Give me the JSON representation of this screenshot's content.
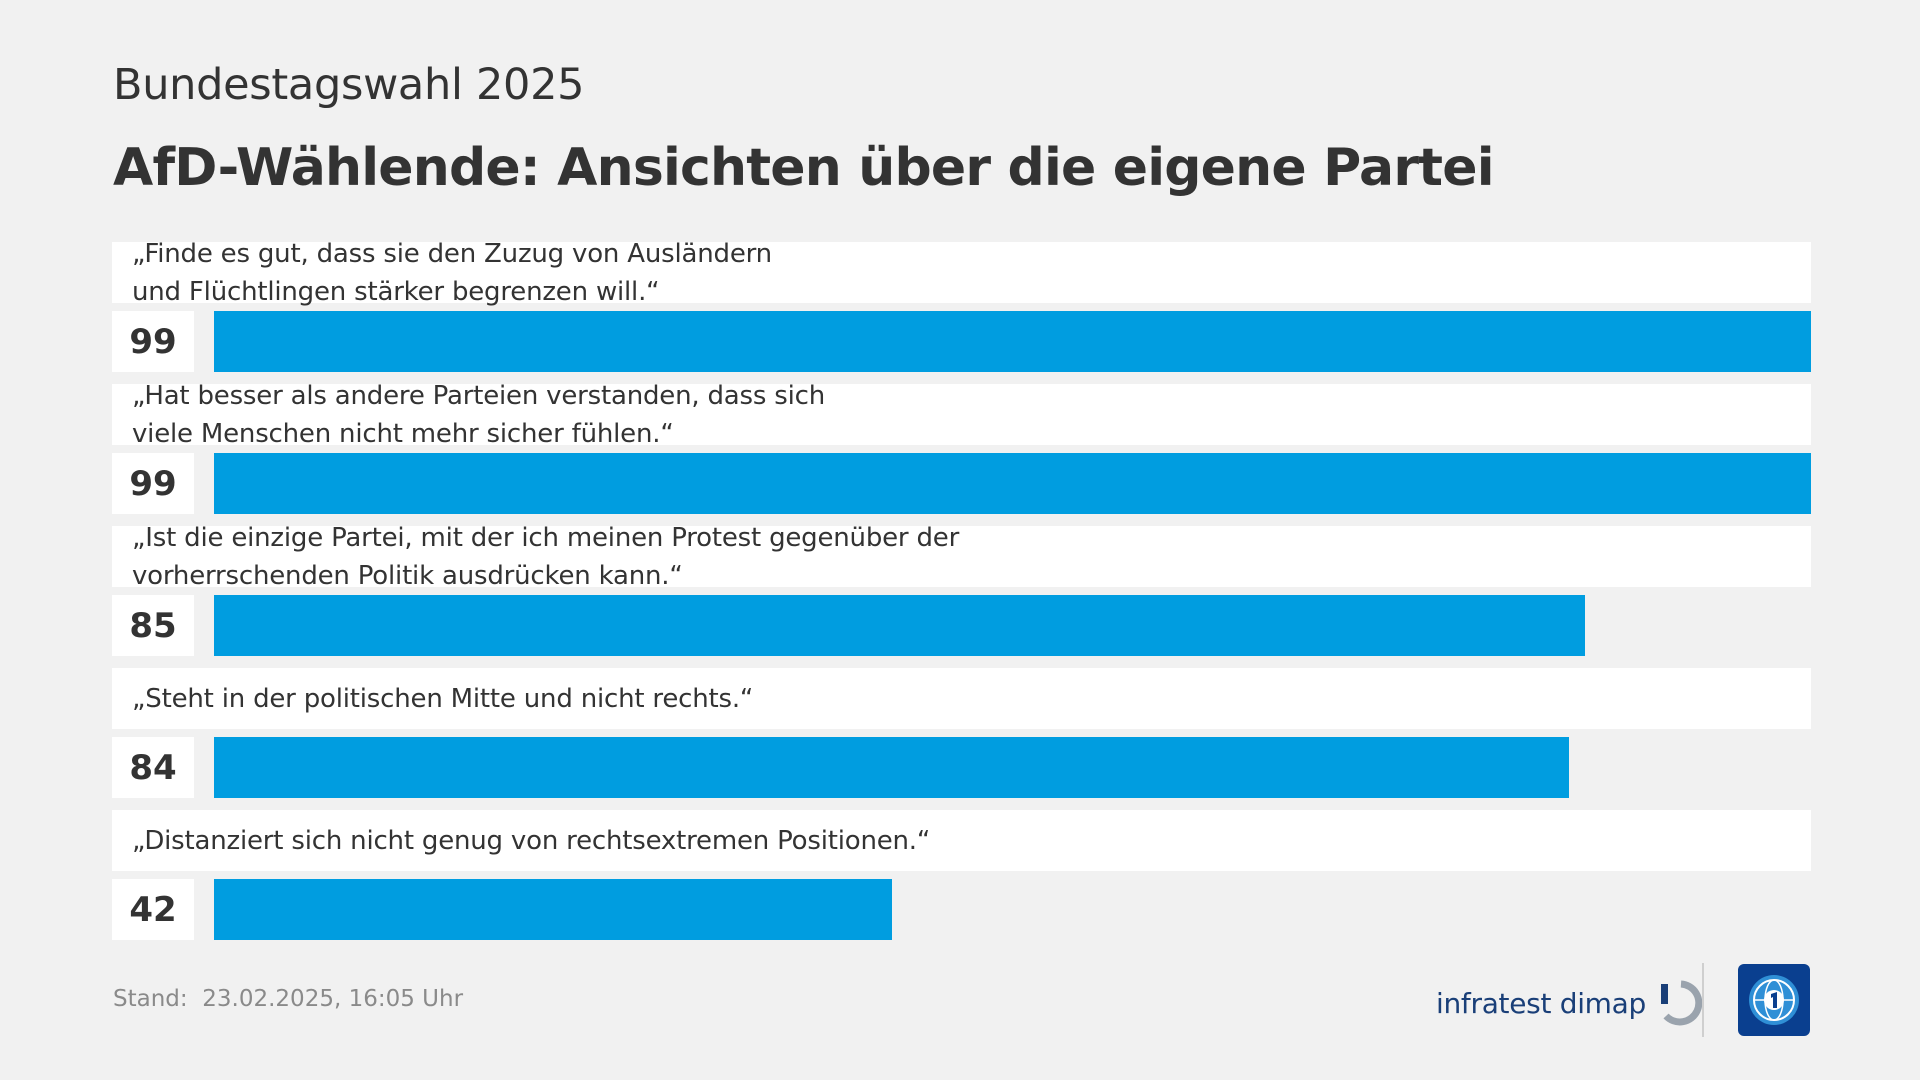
{
  "header": {
    "subtitle": "Bundestagswahl 2025",
    "title": "AfD-Wählende: Ansichten über die eigene Partei"
  },
  "chart_data": {
    "type": "bar",
    "orientation": "horizontal",
    "title": "AfD-Wählende: Ansichten über die eigene Partei",
    "subtitle": "Bundestagswahl 2025",
    "xlim": [
      0,
      99
    ],
    "bar_color": "#009de0",
    "categories": [
      "„Finde es gut, dass sie den Zuzug von Ausländern\nund Flüchtlingen stärker begrenzen will.“",
      "„Hat besser als andere Parteien verstanden, dass sich\nviele Menschen nicht mehr sicher fühlen.“",
      "„Ist die einzige Partei, mit der ich meinen Protest gegenüber der\nvorherrschenden Politik ausdrücken kann.“",
      "„Steht in der politischen Mitte und nicht rechts.“",
      "„Distanziert sich nicht genug von rechtsextremen Positionen.“"
    ],
    "values": [
      99,
      99,
      85,
      84,
      42
    ]
  },
  "footer": {
    "stand_label": "Stand:",
    "stand_value": "23.02.2025, 16:05 Uhr",
    "source": "infratest dimap"
  },
  "colors": {
    "bar": "#009de0",
    "background": "#f1f1f1",
    "brand_blue": "#1a3f78",
    "tag_blue": "#0a3f8f"
  }
}
